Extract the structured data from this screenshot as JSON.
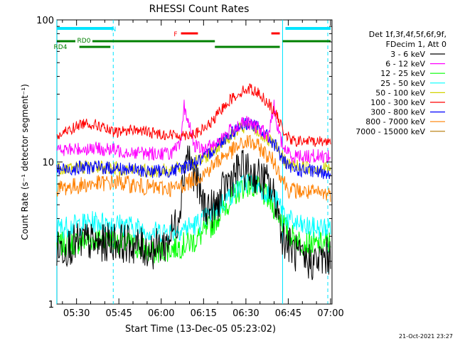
{
  "chart_data": {
    "type": "line",
    "title": "RHESSI Count Rates",
    "xlabel": "Start Time (13-Dec-05 05:23:02)",
    "ylabel": "Count Rate (s⁻¹ detector segment⁻¹)",
    "y_scale": "log",
    "ylim": [
      1,
      100
    ],
    "y_ticks": [
      1,
      10,
      100
    ],
    "y_tick_labels": [
      "1",
      "10",
      "100"
    ],
    "xlim": [
      "05:23:02",
      "07:00:30"
    ],
    "x_ticks": [
      "05:30",
      "05:45",
      "06:00",
      "06:15",
      "06:30",
      "06:45",
      "07:00"
    ],
    "grid": false,
    "legend_position": "right",
    "legend_header": [
      "Det 1f,3f,4f,5f,6f,9f,",
      "FDecim 1, Att 0"
    ],
    "timestamp": "21-Oct-2021 23:27",
    "series_colors": {
      "3 - 6 keV": "#000000",
      "6 - 12 keV": "#ff00ff",
      "12 - 25 keV": "#00ff00",
      "25 - 50 keV": "#00ffff",
      "50 - 100 keV": "#d2d200",
      "100 - 300 keV": "#ff0000",
      "300 - 800 keV": "#0000ff",
      "800 - 7000 keV": "#ff8000",
      "7000 - 15000 keV": "#b47800"
    },
    "series": [
      {
        "name": "3 - 6 keV",
        "x": [
          "05:23",
          "05:28",
          "05:33",
          "05:38",
          "05:43",
          "05:50",
          "05:57",
          "06:02",
          "06:06",
          "06:09",
          "06:12",
          "06:15",
          "06:19",
          "06:23",
          "06:28",
          "06:31",
          "06:34",
          "06:38",
          "06:41",
          "06:43",
          "06:46",
          "06:50",
          "06:55",
          "07:00"
        ],
        "y": [
          2.4,
          2.6,
          2.8,
          2.6,
          2.8,
          2.6,
          2.4,
          2.7,
          4.0,
          12,
          8,
          5,
          4.6,
          7,
          9,
          8.5,
          8,
          7,
          5,
          3,
          2.5,
          2.0,
          2.0,
          2.2
        ]
      },
      {
        "name": "6 - 12 keV",
        "x": [
          "05:23",
          "05:35",
          "05:45",
          "05:55",
          "06:03",
          "06:07",
          "06:08",
          "06:10",
          "06:12",
          "06:15",
          "06:20",
          "06:25",
          "06:30",
          "06:35",
          "06:38",
          "06:40",
          "06:41",
          "06:43",
          "06:46",
          "06:55",
          "07:00"
        ],
        "y": [
          12,
          12.5,
          12,
          11.5,
          11.5,
          13,
          25,
          18,
          13,
          12,
          14,
          17,
          19,
          17,
          15,
          25,
          18,
          13,
          11,
          11,
          11
        ]
      },
      {
        "name": "12 - 25 keV",
        "x": [
          "05:23",
          "05:30",
          "05:37",
          "05:43",
          "05:50",
          "05:57",
          "06:05",
          "06:12",
          "06:18",
          "06:23",
          "06:28",
          "06:31",
          "06:34",
          "06:38",
          "06:42",
          "06:45",
          "06:50",
          "06:55",
          "07:00"
        ],
        "y": [
          2.6,
          2.7,
          2.9,
          2.8,
          2.6,
          2.3,
          2.5,
          2.8,
          3.6,
          5.0,
          6.5,
          7.0,
          6.5,
          5.5,
          4.2,
          3.1,
          2.7,
          2.6,
          2.7
        ]
      },
      {
        "name": "25 - 50 keV",
        "x": [
          "05:23",
          "05:30",
          "05:37",
          "05:43",
          "05:50",
          "05:57",
          "06:05",
          "06:12",
          "06:18",
          "06:23",
          "06:28",
          "06:31",
          "06:34",
          "06:38",
          "06:42",
          "06:45",
          "06:50",
          "06:55",
          "07:00"
        ],
        "y": [
          3.4,
          3.6,
          3.8,
          3.7,
          3.5,
          3.2,
          3.3,
          3.6,
          4.3,
          5.5,
          6.8,
          7.3,
          6.9,
          6.0,
          5.0,
          3.9,
          3.5,
          3.4,
          3.5
        ]
      },
      {
        "name": "50 - 100 keV",
        "x": [
          "05:23",
          "05:35",
          "05:45",
          "05:55",
          "06:05",
          "06:15",
          "06:22",
          "06:28",
          "06:31",
          "06:35",
          "06:40",
          "06:45",
          "06:55",
          "07:00"
        ],
        "y": [
          9,
          9.3,
          9,
          8.6,
          8.8,
          10.5,
          14,
          17,
          18,
          16,
          13,
          9.5,
          9,
          9
        ]
      },
      {
        "name": "100 - 300 keV",
        "x": [
          "05:23",
          "05:28",
          "05:33",
          "05:38",
          "05:43",
          "05:50",
          "05:57",
          "06:03",
          "06:08",
          "06:13",
          "06:18",
          "06:23",
          "06:28",
          "06:31",
          "06:34",
          "06:38",
          "06:41",
          "06:43",
          "06:46",
          "06:50",
          "06:55",
          "07:00"
        ],
        "y": [
          15,
          17,
          19,
          18,
          16,
          17,
          16,
          15.5,
          15.5,
          16,
          19,
          26,
          31,
          33,
          31,
          26,
          21,
          17,
          14,
          14,
          14,
          14
        ]
      },
      {
        "name": "300 - 800 keV",
        "x": [
          "05:23",
          "05:35",
          "05:45",
          "05:55",
          "06:05",
          "06:15",
          "06:22",
          "06:28",
          "06:31",
          "06:35",
          "06:40",
          "06:45",
          "06:55",
          "07:00"
        ],
        "y": [
          8.8,
          9.2,
          9,
          8.6,
          8.7,
          10.5,
          14.5,
          18,
          19,
          17,
          13.5,
          9,
          8.5,
          8.5
        ]
      },
      {
        "name": "800 - 7000 keV",
        "x": [
          "05:23",
          "05:35",
          "05:45",
          "05:55",
          "06:05",
          "06:15",
          "06:22",
          "06:28",
          "06:31",
          "06:35",
          "06:40",
          "06:45",
          "06:55",
          "07:00"
        ],
        "y": [
          6.5,
          7,
          7.2,
          6.6,
          6.5,
          8.2,
          11,
          13,
          14,
          12.5,
          10,
          6.4,
          6,
          6
        ]
      },
      {
        "name": "7000 - 15000 keV",
        "x": [],
        "y": []
      }
    ],
    "annotations": {
      "N": [
        {
          "start": "05:23",
          "end": "05:43"
        },
        {
          "start": "06:44",
          "end": "07:00"
        }
      ],
      "F": [
        {
          "start": "06:07",
          "end": "06:13"
        },
        {
          "start": "06:39",
          "end": "06:42"
        }
      ],
      "RD0": [
        {
          "start": "05:23",
          "end": "06:19"
        },
        {
          "start": "06:43",
          "end": "07:00"
        }
      ],
      "RD4": [
        {
          "start": "05:31",
          "end": "05:42"
        },
        {
          "start": "06:19",
          "end": "06:42"
        }
      ]
    },
    "attenuator_lines": [
      "05:23",
      "05:43",
      "06:43",
      "06:59"
    ]
  }
}
